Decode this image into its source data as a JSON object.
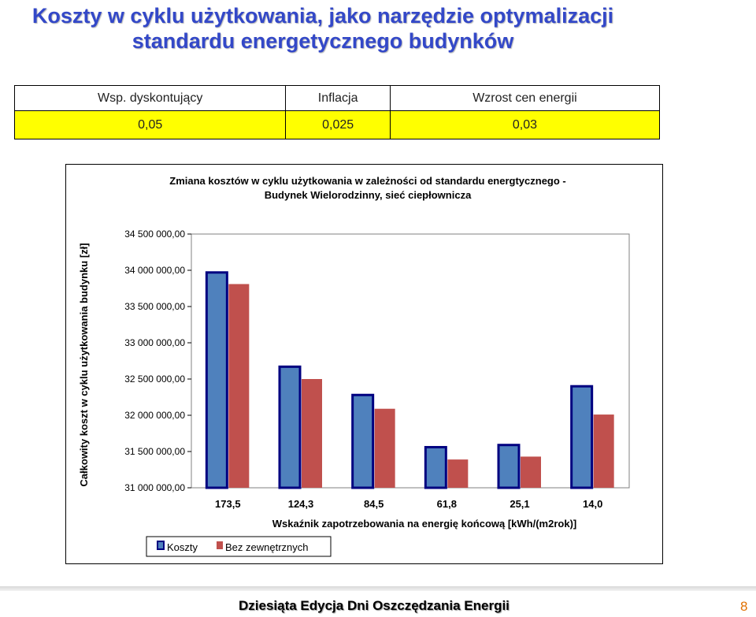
{
  "slide": {
    "title_line1": "Koszty w cyklu użytkowania, jako narzędzie optymalizacji",
    "title_line2": "standardu energetycznego budynków",
    "footer": "Dziesiąta Edycja Dni Oszczędzania Energii",
    "page_number": "8"
  },
  "params_table": {
    "headers": [
      "Wsp. dyskontujący",
      "Inflacja",
      "Wzrost cen energii"
    ],
    "values": [
      "0,05",
      "0,025",
      "0,03"
    ]
  },
  "colors": {
    "title": "#3348c8",
    "koszty": "#4f81bd",
    "koszty_border": "#000080",
    "bez": "#c0504d",
    "table_highlight": "#ffff00"
  },
  "chart_data": {
    "type": "bar",
    "title": "Zmiana kosztów w cyklu użytkowania w zależności od standardu energtycznego - Budynek Wielorodzinny, sieć ciepłownicza",
    "xlabel": "Wskaźnik zapotrzebowania na energię końcową [kWh/(m2rok)]",
    "ylabel": "Całkowity koszt w cyklu użytkowania budynku [zł]",
    "categories": [
      "173,5",
      "124,3",
      "84,5",
      "61,8",
      "25,1",
      "14,0"
    ],
    "ylim": [
      31000000,
      34500000
    ],
    "yticks": [
      31000000,
      31500000,
      32000000,
      32500000,
      33000000,
      33500000,
      34000000,
      34500000
    ],
    "ytick_labels": [
      "31 000 000,00",
      "31 500 000,00",
      "32 000 000,00",
      "32 500 000,00",
      "33 000 000,00",
      "33 500 000,00",
      "34 000 000,00",
      "34 500 000,00"
    ],
    "series": [
      {
        "name": "Koszty",
        "values": [
          33970000,
          32670000,
          32280000,
          31560000,
          31590000,
          32400000
        ]
      },
      {
        "name": "Bez zewnętrznych",
        "values": [
          33810000,
          32500000,
          32090000,
          31390000,
          31430000,
          32010000
        ]
      }
    ],
    "grid": false,
    "legend_position": "bottom-left"
  }
}
